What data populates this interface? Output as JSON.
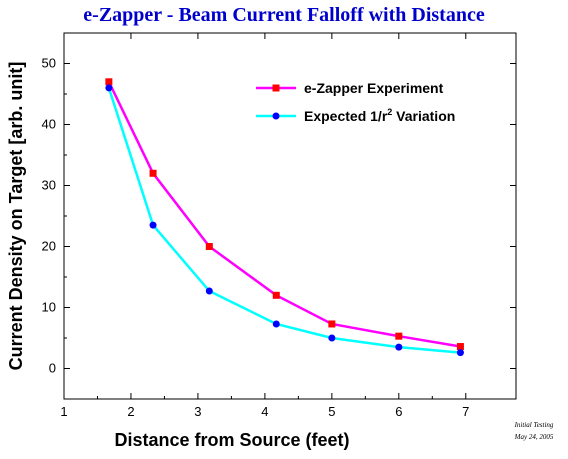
{
  "chart_data": {
    "type": "line",
    "title": "e-Zapper - Beam Current Falloff with Distance",
    "xlabel": "Distance from Source (feet)",
    "ylabel": "Current Density on Target [arb. unit]",
    "xlim": [
      1,
      7.75
    ],
    "ylim": [
      -5,
      55
    ],
    "xticks": [
      1,
      2,
      3,
      4,
      5,
      6,
      7
    ],
    "yticks": [
      0,
      10,
      20,
      30,
      40,
      50
    ],
    "grid": false,
    "legend_position": "top-right",
    "series": [
      {
        "name": "e-Zapper Experiment",
        "color": "#ff00ff",
        "marker": "square",
        "marker_color": "#ff0000",
        "x": [
          1.67,
          2.33,
          3.17,
          4.17,
          5.0,
          6.0,
          6.92
        ],
        "y": [
          47,
          32,
          20,
          12,
          7.3,
          5.3,
          3.6
        ]
      },
      {
        "name": "Expected 1/r",
        "name_superscript": "2",
        "name_suffix": " Variation",
        "color": "#00ffff",
        "marker": "circle",
        "marker_color": "#0000ff",
        "x": [
          1.67,
          2.33,
          3.17,
          4.17,
          5.0,
          6.0,
          6.92
        ],
        "y": [
          46,
          23.5,
          12.7,
          7.3,
          5.0,
          3.5,
          2.6
        ]
      }
    ],
    "annotation": {
      "line1": "Initial Testing",
      "line2": "May 24, 2005"
    }
  }
}
